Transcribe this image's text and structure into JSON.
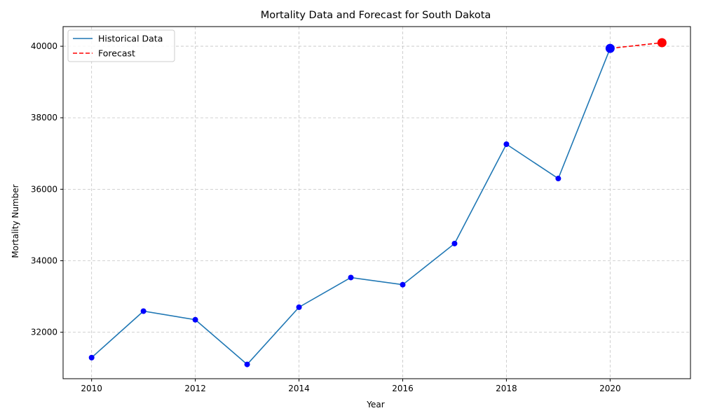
{
  "chart_data": {
    "type": "line",
    "title": "Mortality Data and Forecast for South Dakota",
    "xlabel": "Year",
    "ylabel": "Mortality Number",
    "xlim": [
      2009.45,
      2021.55
    ],
    "ylim": [
      30700,
      40550
    ],
    "x_ticks": [
      2010,
      2012,
      2014,
      2016,
      2018,
      2020
    ],
    "y_ticks": [
      32000,
      34000,
      36000,
      38000,
      40000
    ],
    "grid": true,
    "legend_position": "top-left",
    "series": [
      {
        "name": "Historical Data",
        "style": "solid",
        "color": "#1f77b4",
        "marker_color": "#0000ff",
        "x": [
          2010,
          2011,
          2012,
          2013,
          2014,
          2015,
          2016,
          2017,
          2018,
          2019,
          2020
        ],
        "y": [
          31290,
          32590,
          32350,
          31100,
          32700,
          33530,
          33330,
          34480,
          37260,
          36300,
          39940
        ]
      },
      {
        "name": "Forecast",
        "style": "dashed",
        "color": "#ff0000",
        "marker_color": "#ff0000",
        "x": [
          2020,
          2021
        ],
        "y": [
          39940,
          40100
        ]
      }
    ],
    "highlighted_points": [
      {
        "x": 2020,
        "y": 39940,
        "color": "#0000ff"
      },
      {
        "x": 2021,
        "y": 40100,
        "color": "#ff0000"
      }
    ]
  }
}
